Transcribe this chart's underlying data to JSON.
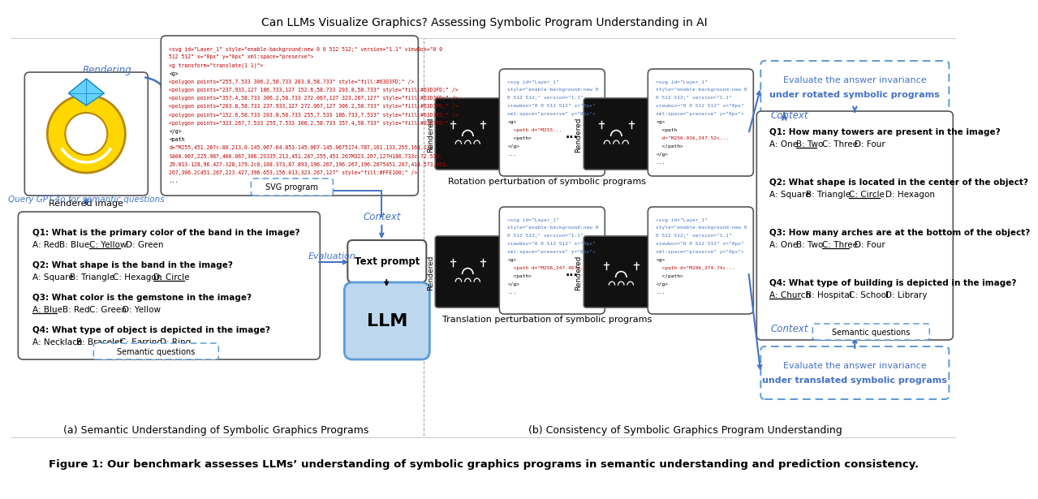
{
  "title": "Figure 1: Our benchmark assesses LLMs’ understanding of symbolic graphics programs in semantic understanding and prediction consistency.",
  "subtitle_a": "(a) Semantic Understanding of Symbolic Graphics Programs",
  "subtitle_b": "(b) Consistency of Symbolic Graphics Program Understanding",
  "bg_color": "#ffffff",
  "colors": {
    "blue": "#4472C4",
    "red": "#C00000",
    "dashed_blue": "#5B9BD5",
    "light_blue": "#BDD7EE",
    "arrow_blue": "#2E75B6",
    "gray": "#555555"
  },
  "panel_a_questions": [
    {
      "q": "Q1: What is the primary color of the band in the image?",
      "opts": [
        "A: Red",
        "B: Blue",
        "C: Yellow",
        "D: Green"
      ],
      "correct": 2
    },
    {
      "q": "Q2: What shape is the band in the image?",
      "opts": [
        "A: Square",
        "B: Triangle",
        "C: Hexagon",
        "D: Circle"
      ],
      "correct": 3
    },
    {
      "q": "Q3: What color is the gemstone in the image?",
      "opts": [
        "A: Blue",
        "B: Red",
        "C: Green",
        "D: Yellow"
      ],
      "correct": 0
    },
    {
      "q": "Q4: What type of object is depicted in the image?",
      "opts": [
        "A: Necklace",
        "B: Bracelet",
        "C: Earring",
        "D: Ring"
      ],
      "correct": 3
    }
  ],
  "panel_b_questions": [
    {
      "q": "Q1: How many towers are present in the image?",
      "opts": [
        "A: One",
        "B: Two",
        "C: Three",
        "D: Four"
      ],
      "correct": 1
    },
    {
      "q": "Q2: What shape is located in the center of the object?",
      "opts": [
        "A: Square",
        "B: Triangle",
        "C: Circle",
        "D: Hexagon"
      ],
      "correct": 2
    },
    {
      "q": "Q3: How many arches are at the bottom of the object?",
      "opts": [
        "A: One",
        "B: Two",
        "C: Three",
        "D: Four"
      ],
      "correct": 2
    },
    {
      "q": "Q4: What type of building is depicted in the image?",
      "opts": [
        "A: Church",
        "B: Hospital",
        "C: School",
        "D: Library"
      ],
      "correct": 0
    }
  ],
  "svg_a_lines": [
    [
      "<svg id=\"Layer_1\" style=\"enable-background:new 0 0 512 512;\" version=\"1.1\" viewBox=\"0 0",
      "red"
    ],
    [
      "512 512\" x=\"0px\" y=\"0px\" xml:space=\"preserve\">",
      "red"
    ],
    [
      "<g transform=\"translate(1 1)\">",
      "red"
    ],
    [
      "<g>",
      "black"
    ],
    [
      "<polygon points=\"255,7.533 306.2,58.733 203.8,58.733\" style=\"fill:#63D3FD;\" />",
      "red"
    ],
    [
      "<polygon points=\"237.933,127 186.733,127 152.6,58.733 203.8,58.733\" style=\"fill:#63D3FD;\" />",
      "red"
    ],
    [
      "<polygon points=\"357.4,58.733 306.2,58.733 272.067,127 323.267,127\" style=\"fill:#63D3FD;\" />",
      "red"
    ],
    [
      "<polygon points=\"203.8,58.733 237.933,127 272.067,127 306.2,58.733\" style=\"fill:#63D3FD;\" />",
      "red"
    ],
    [
      "<polygon points=\"152.6,58.733 203.8,58.733 255,7.533 186.733,7.533\" style=\"fill:#63D3FD;\" />",
      "red"
    ],
    [
      "<polygon points=\"323.267,7.533 255,7.533 306.2,58.733 357.4,58.733\" style=\"fill:#63D3FD;\" />",
      "red"
    ],
    [
      "</g>",
      "black"
    ],
    [
      "<path",
      "black"
    ],
    [
      "d=\"M255,451.267c-80.213,0-145.067-64.853-145.067-145.0675174.787,161.133,255,161.133",
      "red"
    ],
    [
      "S400.067,225.987,400.067,306.2S335.213,451.267,255,451.267M323.267,127H186.733c-72.533,",
      "red"
    ],
    [
      "29.013-128,96.427-128,179.2c0,108.373,87.893,196.267,196.267,196.2675451.267,414.573,451.",
      "red"
    ],
    [
      "267,306.2C451.267,223.427,396.653,156.013,323.267,127\" style=\"fill:#FFE100;\" />",
      "red"
    ],
    [
      "...",
      "black"
    ]
  ],
  "svg_b_rot_left": [
    [
      "<svg id=\"Layer_1\"",
      "blue"
    ],
    [
      "style=\"enable-background:new 0",
      "blue"
    ],
    [
      "0 512 512;\" version=\"1.1\"",
      "blue"
    ],
    [
      "viewbox=\"0 0 512 512\" x=\"0px\"",
      "blue"
    ],
    [
      "xml:space=\"preserve\" y=\"0px\">",
      "blue"
    ],
    [
      "<g>",
      "black"
    ],
    [
      "  <path d=\"M255...",
      "red"
    ],
    [
      "  <path>",
      "black"
    ],
    [
      "</g>",
      "black"
    ],
    [
      "...",
      "black"
    ]
  ],
  "svg_b_rot_right": [
    [
      "<svg id=\"Layer_1\"",
      "blue"
    ],
    [
      "style=\"enable-background:new 0",
      "blue"
    ],
    [
      "0 512 512;\" version=\"1.1\"",
      "blue"
    ],
    [
      "viewbox=\"0 0 512 512\" x=\"0px\"",
      "blue"
    ],
    [
      "xml:space=\"preserve\" y=\"0px\">",
      "blue"
    ],
    [
      "<g>",
      "black"
    ],
    [
      "  <path",
      "black"
    ],
    [
      "  d=\"M256.916,247.52c...",
      "red"
    ],
    [
      "  </path>",
      "black"
    ],
    [
      "</g>",
      "black"
    ],
    [
      "...",
      "black"
    ]
  ],
  "svg_b_trans_left": [
    [
      "<svg id=\"Layer_1\"",
      "blue"
    ],
    [
      "style=\"enable-background:new 0",
      "blue"
    ],
    [
      "0 512 512;\" version=\"1.1\"",
      "blue"
    ],
    [
      "viewbox=\"0 0 512 512\" x=\"0px\"",
      "blue"
    ],
    [
      "xml:space=\"preserve\" y=\"0px\">",
      "blue"
    ],
    [
      "<g>",
      "black"
    ],
    [
      "  <path d=\"M256,247.467e...",
      "red"
    ],
    [
      "  <path>",
      "black"
    ],
    [
      "</g>",
      "black"
    ],
    [
      "...",
      "black"
    ]
  ],
  "svg_b_trans_right": [
    [
      "<svg id=\"Layer_1\"",
      "blue"
    ],
    [
      "style=\"enable-background:new 0",
      "blue"
    ],
    [
      "0 512 512;\" version=\"1.1\"",
      "blue"
    ],
    [
      "viewbox=\"0 0 512 512\" x=\"0px\"",
      "blue"
    ],
    [
      "xml:space=\"preserve\" y=\"0px\">",
      "blue"
    ],
    [
      "<g>",
      "black"
    ],
    [
      "  <path d=\"M296,274.74c...",
      "red"
    ],
    [
      "  </path>",
      "black"
    ],
    [
      "</g>",
      "black"
    ],
    [
      "...",
      "black"
    ]
  ]
}
